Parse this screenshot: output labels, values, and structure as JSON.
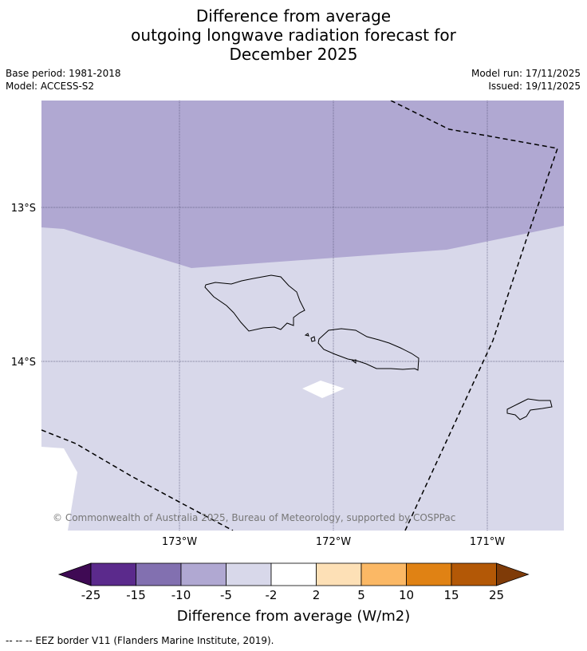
{
  "title": {
    "line1": "Difference from average",
    "line2": "outgoing longwave radiation forecast for",
    "line3": "December 2025"
  },
  "meta": {
    "base_period": "Base period: 1981-2018",
    "model": "Model: ACCESS-S2",
    "model_run": "Model run: 17/11/2025",
    "issued": "Issued: 19/11/2025"
  },
  "map": {
    "lat_labels": [
      "13°S",
      "14°S"
    ],
    "lon_labels": [
      "173°W",
      "172°W",
      "171°W"
    ],
    "copyright": "© Commonwealth of Australia 2025, Bureau of Meteorology, supported by COSPPac"
  },
  "colorbar": {
    "ticks": [
      "-25",
      "-15",
      "-10",
      "-5",
      "-2",
      "2",
      "5",
      "10",
      "15",
      "25"
    ],
    "colors": [
      "#3f0a54",
      "#5b2a8c",
      "#8270b0",
      "#b0a8d2",
      "#d8d8ea",
      "#ffffff",
      "#fde0b6",
      "#fbb865",
      "#e08214",
      "#b35806",
      "#7f3b08"
    ],
    "label": "Difference from average (W/m2)"
  },
  "footer": "--  --  -- EEZ border V11 (Flanders Marine Institute, 2019)."
}
